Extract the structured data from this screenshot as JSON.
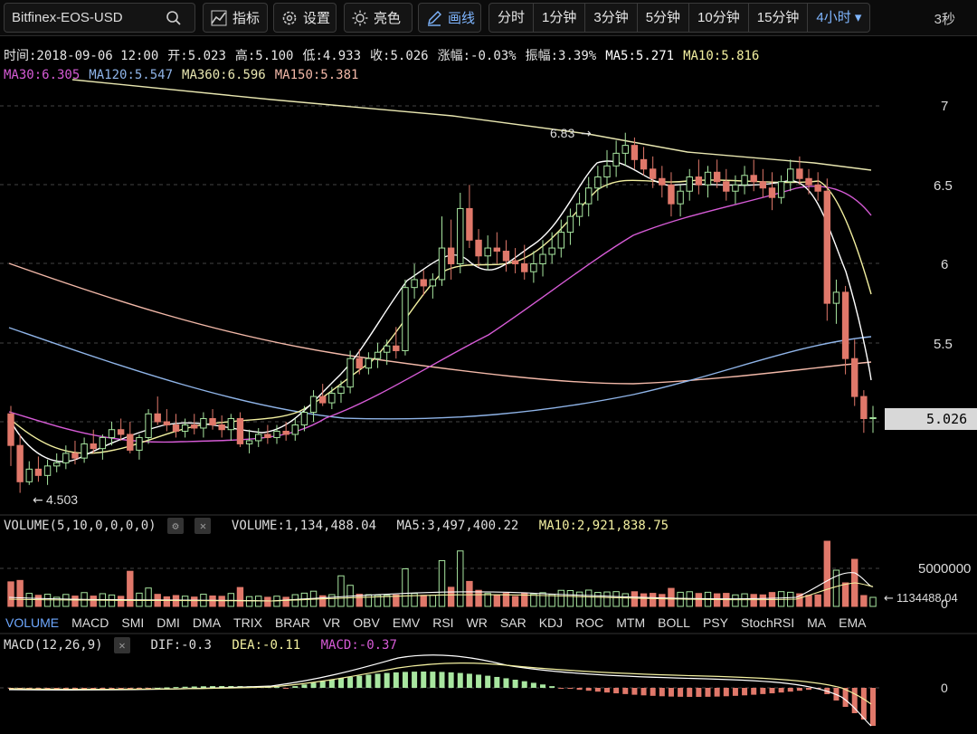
{
  "toolbar": {
    "symbol": "Bitfinex-EOS-USD",
    "indicators_label": "指标",
    "settings_label": "设置",
    "bright_label": "亮色",
    "draw_label": "画线",
    "intervals": [
      "分时",
      "1分钟",
      "3分钟",
      "5分钟",
      "10分钟",
      "15分钟",
      "4小时 ▾"
    ],
    "refresh": "3秒"
  },
  "info": {
    "line1": [
      "时间:2018-09-06 12:00",
      "开:5.023",
      "高:5.100",
      "低:4.933",
      "收:5.026",
      "涨幅:-0.03%",
      "振幅:3.39%",
      "MA5:5.271",
      "MA10:5.816"
    ],
    "line2": [
      "MA30:6.305",
      "MA120:5.547",
      "MA360:6.596",
      "MA150:5.381"
    ]
  },
  "colors": {
    "up": "#a8e6a0",
    "down": "#e0786a",
    "ma5": "#ffffff",
    "ma10": "#f3f0a0",
    "ma30": "#d65bd6",
    "ma120": "#8fb4e8",
    "ma360": "#e8e6b0",
    "ma150": "#f2b8a8",
    "label_ma30": "#d65bd6",
    "label_ma120": "#8fb4e8",
    "label_ma360": "#e8e6b0",
    "label_ma150": "#f2b8a8"
  },
  "price_axis": {
    "ticks": [
      "7",
      "6.5",
      "6",
      "5.5"
    ],
    "current": "5.026",
    "high_marker": "6.83",
    "low_marker": "4.503"
  },
  "volume": {
    "title": "VOLUME(5,10,0,0,0,0)",
    "value": "VOLUME:1,134,488.04",
    "ma5": "MA5:3,497,400.22",
    "ma10": "MA10:2,921,838.75",
    "axis_label": "5000000",
    "axis_zero": "0",
    "last": "1134488.04"
  },
  "tabs": [
    "VOLUME",
    "MACD",
    "SMI",
    "DMI",
    "DMA",
    "TRIX",
    "BRAR",
    "VR",
    "OBV",
    "EMV",
    "RSI",
    "WR",
    "SAR",
    "KDJ",
    "ROC",
    "MTM",
    "BOLL",
    "PSY",
    "StochRSI",
    "MA",
    "EMA"
  ],
  "macd": {
    "title": "MACD(12,26,9)",
    "dif": "DIF:-0.3",
    "dea": "DEA:-0.11",
    "macd": "MACD:-0.37",
    "axis_zero": "0"
  },
  "chart_data": {
    "type": "candlestick",
    "ylim": [
      4.4,
      7.2
    ],
    "ohlc": [
      [
        5.05,
        5.1,
        4.72,
        4.85
      ],
      [
        4.85,
        4.92,
        4.55,
        4.62
      ],
      [
        4.62,
        4.75,
        4.6,
        4.7
      ],
      [
        4.7,
        4.78,
        4.62,
        4.66
      ],
      [
        4.66,
        4.76,
        4.6,
        4.72
      ],
      [
        4.72,
        4.8,
        4.68,
        4.74
      ],
      [
        4.74,
        4.85,
        4.7,
        4.8
      ],
      [
        4.8,
        4.88,
        4.73,
        4.77
      ],
      [
        4.77,
        4.9,
        4.74,
        4.86
      ],
      [
        4.86,
        4.95,
        4.8,
        4.83
      ],
      [
        4.83,
        4.92,
        4.76,
        4.9
      ],
      [
        4.9,
        5.0,
        4.85,
        4.95
      ],
      [
        4.95,
        5.02,
        4.88,
        4.92
      ],
      [
        4.92,
        5.0,
        4.8,
        4.82
      ],
      [
        4.82,
        4.92,
        4.76,
        4.9
      ],
      [
        4.9,
        5.08,
        4.86,
        5.05
      ],
      [
        5.05,
        5.16,
        4.98,
        5.0
      ],
      [
        5.0,
        5.08,
        4.94,
        4.98
      ],
      [
        4.98,
        5.05,
        4.9,
        4.94
      ],
      [
        4.94,
        5.02,
        4.9,
        4.98
      ],
      [
        4.98,
        5.05,
        4.92,
        4.96
      ],
      [
        4.96,
        5.06,
        4.9,
        5.02
      ],
      [
        5.02,
        5.08,
        4.95,
        4.98
      ],
      [
        4.98,
        5.04,
        4.9,
        4.95
      ],
      [
        4.95,
        5.05,
        4.88,
        5.02
      ],
      [
        5.02,
        5.06,
        4.84,
        4.86
      ],
      [
        4.86,
        4.95,
        4.8,
        4.88
      ],
      [
        4.88,
        4.96,
        4.84,
        4.92
      ],
      [
        4.92,
        4.98,
        4.86,
        4.9
      ],
      [
        4.9,
        4.98,
        4.86,
        4.94
      ],
      [
        4.94,
        5.0,
        4.88,
        4.92
      ],
      [
        4.92,
        5.02,
        4.88,
        4.98
      ],
      [
        4.98,
        5.1,
        4.94,
        5.06
      ],
      [
        5.06,
        5.2,
        5.0,
        5.16
      ],
      [
        5.16,
        5.24,
        5.1,
        5.12
      ],
      [
        5.12,
        5.22,
        5.08,
        5.18
      ],
      [
        5.18,
        5.26,
        5.12,
        5.22
      ],
      [
        5.22,
        5.45,
        5.18,
        5.4
      ],
      [
        5.4,
        5.46,
        5.3,
        5.34
      ],
      [
        5.34,
        5.44,
        5.3,
        5.4
      ],
      [
        5.4,
        5.5,
        5.34,
        5.44
      ],
      [
        5.44,
        5.52,
        5.36,
        5.48
      ],
      [
        5.48,
        5.6,
        5.4,
        5.45
      ],
      [
        5.45,
        5.9,
        5.42,
        5.85
      ],
      [
        5.85,
        6.0,
        5.78,
        5.9
      ],
      [
        5.9,
        5.96,
        5.8,
        5.86
      ],
      [
        5.86,
        5.94,
        5.78,
        5.9
      ],
      [
        5.9,
        6.3,
        5.86,
        6.1
      ],
      [
        6.1,
        6.28,
        5.9,
        6.0
      ],
      [
        6.0,
        6.45,
        5.94,
        6.35
      ],
      [
        6.35,
        6.5,
        6.1,
        6.15
      ],
      [
        6.15,
        6.22,
        5.98,
        6.05
      ],
      [
        6.05,
        6.18,
        5.96,
        6.1
      ],
      [
        6.1,
        6.2,
        6.0,
        6.08
      ],
      [
        6.08,
        6.15,
        5.95,
        6.02
      ],
      [
        6.02,
        6.1,
        5.94,
        6.0
      ],
      [
        6.0,
        6.12,
        5.9,
        5.95
      ],
      [
        5.95,
        6.08,
        5.88,
        6.0
      ],
      [
        6.0,
        6.15,
        5.92,
        6.06
      ],
      [
        6.06,
        6.2,
        6.0,
        6.1
      ],
      [
        6.1,
        6.28,
        6.04,
        6.2
      ],
      [
        6.2,
        6.35,
        6.12,
        6.3
      ],
      [
        6.3,
        6.45,
        6.24,
        6.38
      ],
      [
        6.38,
        6.55,
        6.3,
        6.48
      ],
      [
        6.48,
        6.62,
        6.4,
        6.55
      ],
      [
        6.55,
        6.72,
        6.48,
        6.62
      ],
      [
        6.62,
        6.78,
        6.55,
        6.7
      ],
      [
        6.7,
        6.83,
        6.62,
        6.75
      ],
      [
        6.75,
        6.8,
        6.6,
        6.66
      ],
      [
        6.66,
        6.74,
        6.56,
        6.6
      ],
      [
        6.6,
        6.68,
        6.48,
        6.54
      ],
      [
        6.54,
        6.62,
        6.42,
        6.5
      ],
      [
        6.5,
        6.58,
        6.3,
        6.38
      ],
      [
        6.38,
        6.5,
        6.3,
        6.46
      ],
      [
        6.46,
        6.6,
        6.4,
        6.55
      ],
      [
        6.55,
        6.66,
        6.44,
        6.5
      ],
      [
        6.5,
        6.62,
        6.42,
        6.58
      ],
      [
        6.58,
        6.66,
        6.48,
        6.52
      ],
      [
        6.52,
        6.6,
        6.4,
        6.46
      ],
      [
        6.46,
        6.56,
        6.38,
        6.5
      ],
      [
        6.5,
        6.62,
        6.44,
        6.56
      ],
      [
        6.56,
        6.66,
        6.46,
        6.52
      ],
      [
        6.52,
        6.6,
        6.42,
        6.48
      ],
      [
        6.48,
        6.58,
        6.34,
        6.42
      ],
      [
        6.42,
        6.56,
        6.38,
        6.52
      ],
      [
        6.52,
        6.66,
        6.46,
        6.6
      ],
      [
        6.6,
        6.68,
        6.5,
        6.54
      ],
      [
        6.54,
        6.6,
        6.44,
        6.5
      ],
      [
        6.5,
        6.58,
        6.4,
        6.46
      ],
      [
        6.46,
        6.54,
        5.64,
        5.75
      ],
      [
        5.75,
        5.9,
        5.62,
        5.82
      ],
      [
        5.82,
        5.86,
        5.3,
        5.4
      ],
      [
        5.4,
        5.52,
        5.1,
        5.16
      ],
      [
        5.16,
        5.2,
        4.93,
        5.02
      ],
      [
        5.02,
        5.1,
        4.93,
        5.026
      ]
    ],
    "ma_lines": {
      "MA360": [
        [
          7.05,
          7.02,
          6.6
        ]
      ],
      "notes": "moving averages drawn as smooth series"
    }
  }
}
